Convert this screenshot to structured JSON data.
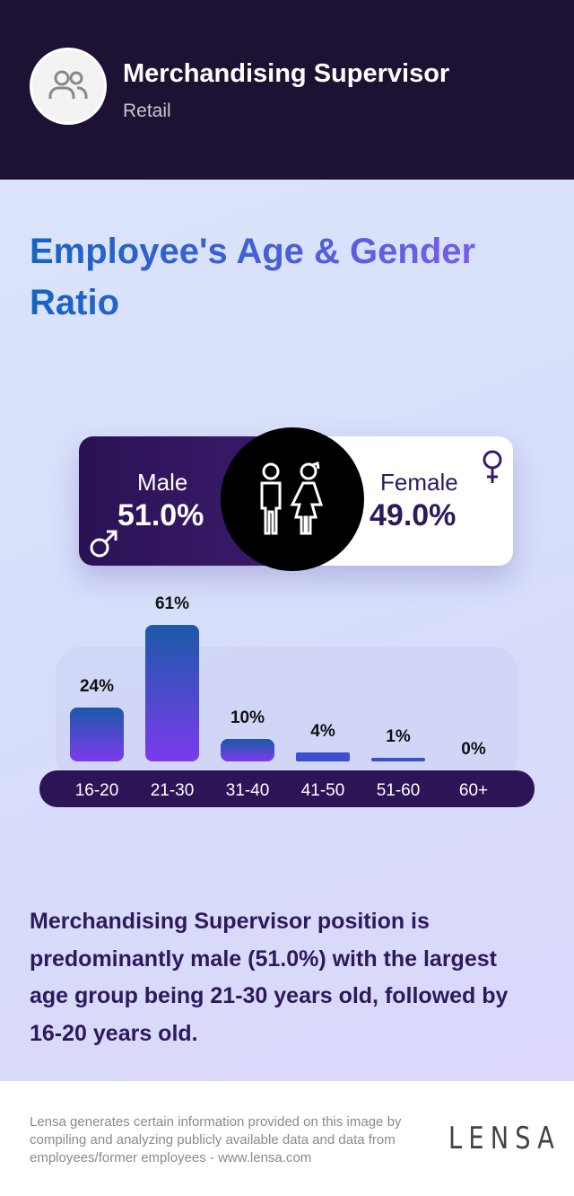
{
  "header": {
    "job_title": "Merchandising Supervisor",
    "industry": "Retail",
    "avatar_icon": "users-icon"
  },
  "title": "Employee's Age & Gender Ratio",
  "gender": {
    "male_label": "Male",
    "male_value": "51.0%",
    "female_label": "Female",
    "female_value": "49.0%",
    "male_color": "#2a1254",
    "female_color": "#ffffff"
  },
  "chart_data": {
    "type": "bar",
    "categories": [
      "16-20",
      "21-30",
      "31-40",
      "41-50",
      "51-60",
      "60+"
    ],
    "values": [
      24,
      61,
      10,
      4,
      1,
      0
    ],
    "labels": [
      "24%",
      "61%",
      "10%",
      "4%",
      "1%",
      "0%"
    ],
    "title": "",
    "xlabel": "",
    "ylabel": "",
    "ylim": [
      0,
      61
    ],
    "grid": false,
    "bar_gradient": [
      "#1b5aa8",
      "#7c3aed"
    ]
  },
  "summary": "Merchandising Supervisor position is predominantly male (51.0%) with the largest age group being 21-30 years old, followed by 16-20 years old.",
  "footer": {
    "disclaimer": "Lensa generates certain information provided on this image by compiling and analyzing publicly available data and data from employees/former employees - www.lensa.com",
    "logo": "LENSA"
  }
}
